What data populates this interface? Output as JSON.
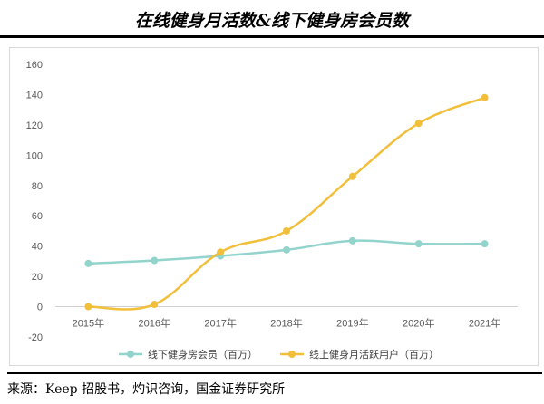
{
  "header": {
    "title": "在线健身月活数&线下健身房会员数"
  },
  "source": "来源：Keep 招股书，灼识咨询，国金证券研究所",
  "chart_data": {
    "type": "line",
    "title": "在线健身月活数&线下健身房会员数",
    "categories": [
      "2015年",
      "2016年",
      "2017年",
      "2018年",
      "2019年",
      "2020年",
      "2021年"
    ],
    "ylim": [
      -20,
      160
    ],
    "yticks": [
      -20,
      0,
      20,
      40,
      60,
      80,
      100,
      120,
      140,
      160
    ],
    "grid": false,
    "legend_position": "bottom",
    "series": [
      {
        "name": "线下健身房会员（百万）",
        "color": "#92d4cc",
        "values": [
          28.5,
          30.5,
          33.5,
          37.5,
          43.5,
          41.5,
          41.5
        ]
      },
      {
        "name": "线上健身月活跃用户（百万）",
        "color": "#f2bf3a",
        "values": [
          0,
          1.5,
          36,
          50,
          86,
          121,
          138
        ]
      }
    ]
  }
}
